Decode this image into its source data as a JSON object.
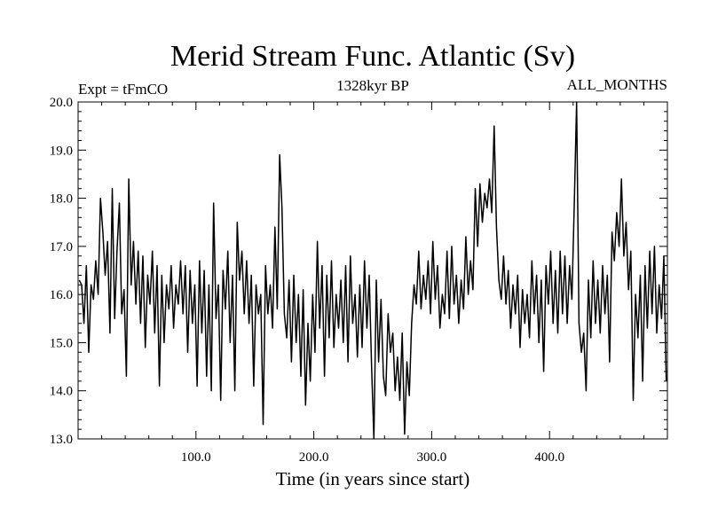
{
  "chart_data": {
    "type": "line",
    "title": "Merid Stream Func. Atlantic (Sv)",
    "subtitle_left": "Expt = tFmCO",
    "subtitle_center": "1328kyr BP",
    "subtitle_right": "ALL_MONTHS",
    "xlabel": "Time (in years since start)",
    "ylabel": "",
    "xlim": [
      0,
      500
    ],
    "ylim": [
      13.0,
      20.0
    ],
    "x_ticks": [
      100.0,
      200.0,
      300.0,
      400.0
    ],
    "x_tick_labels": [
      "100.0",
      "200.0",
      "300.0",
      "400.0"
    ],
    "y_ticks": [
      13.0,
      14.0,
      15.0,
      16.0,
      17.0,
      18.0,
      19.0,
      20.0
    ],
    "y_tick_labels": [
      "13.0",
      "14.0",
      "15.0",
      "16.0",
      "17.0",
      "18.0",
      "19.0",
      "20.0"
    ],
    "grid": false,
    "line_color": "#000000",
    "series": [
      {
        "points": [
          [
            1,
            16.3
          ],
          [
            3,
            16.2
          ],
          [
            5,
            15.4
          ],
          [
            7,
            16.6
          ],
          [
            9,
            14.8
          ],
          [
            11,
            16.2
          ],
          [
            13,
            15.9
          ],
          [
            15,
            16.7
          ],
          [
            17,
            16.0
          ],
          [
            19,
            18.0
          ],
          [
            21,
            17.3
          ],
          [
            23,
            16.4
          ],
          [
            25,
            17.1
          ],
          [
            27,
            15.2
          ],
          [
            29,
            18.2
          ],
          [
            31,
            15.5
          ],
          [
            33,
            16.9
          ],
          [
            35,
            17.9
          ],
          [
            37,
            15.6
          ],
          [
            39,
            16.1
          ],
          [
            41,
            14.3
          ],
          [
            43,
            18.4
          ],
          [
            45,
            16.2
          ],
          [
            47,
            17.1
          ],
          [
            49,
            15.8
          ],
          [
            51,
            16.9
          ],
          [
            53,
            15.4
          ],
          [
            55,
            16.8
          ],
          [
            57,
            14.9
          ],
          [
            59,
            16.4
          ],
          [
            61,
            15.8
          ],
          [
            63,
            16.9
          ],
          [
            65,
            15.2
          ],
          [
            67,
            16.6
          ],
          [
            69,
            14.1
          ],
          [
            71,
            16.4
          ],
          [
            73,
            15.0
          ],
          [
            75,
            16.2
          ],
          [
            77,
            15.7
          ],
          [
            79,
            16.6
          ],
          [
            81,
            15.3
          ],
          [
            83,
            16.2
          ],
          [
            85,
            15.8
          ],
          [
            87,
            16.7
          ],
          [
            89,
            15.6
          ],
          [
            91,
            16.6
          ],
          [
            93,
            14.8
          ],
          [
            95,
            16.5
          ],
          [
            97,
            15.4
          ],
          [
            99,
            16.2
          ],
          [
            101,
            14.1
          ],
          [
            103,
            16.7
          ],
          [
            105,
            15.2
          ],
          [
            107,
            16.5
          ],
          [
            109,
            14.3
          ],
          [
            111,
            16.2
          ],
          [
            113,
            14.0
          ],
          [
            115,
            17.9
          ],
          [
            117,
            15.5
          ],
          [
            119,
            16.2
          ],
          [
            121,
            13.8
          ],
          [
            123,
            16.5
          ],
          [
            125,
            15.7
          ],
          [
            127,
            16.9
          ],
          [
            129,
            15.0
          ],
          [
            131,
            16.4
          ],
          [
            133,
            14.0
          ],
          [
            135,
            17.5
          ],
          [
            137,
            16.3
          ],
          [
            139,
            16.9
          ],
          [
            141,
            15.6
          ],
          [
            143,
            16.7
          ],
          [
            145,
            15.4
          ],
          [
            147,
            16.4
          ],
          [
            149,
            14.1
          ],
          [
            151,
            16.2
          ],
          [
            153,
            15.6
          ],
          [
            155,
            16.0
          ],
          [
            157,
            13.3
          ],
          [
            159,
            16.6
          ],
          [
            161,
            15.6
          ],
          [
            163,
            16.2
          ],
          [
            165,
            15.3
          ],
          [
            167,
            17.4
          ],
          [
            169,
            15.7
          ],
          [
            171,
            18.9
          ],
          [
            173,
            17.8
          ],
          [
            175,
            15.6
          ],
          [
            177,
            15.1
          ],
          [
            179,
            16.3
          ],
          [
            181,
            14.6
          ],
          [
            183,
            16.4
          ],
          [
            185,
            15.0
          ],
          [
            187,
            16.0
          ],
          [
            189,
            14.3
          ],
          [
            191,
            16.1
          ],
          [
            193,
            13.7
          ],
          [
            195,
            15.4
          ],
          [
            197,
            14.2
          ],
          [
            199,
            16.0
          ],
          [
            201,
            14.8
          ],
          [
            203,
            17.1
          ],
          [
            205,
            15.3
          ],
          [
            207,
            16.6
          ],
          [
            209,
            14.3
          ],
          [
            211,
            16.4
          ],
          [
            213,
            15.1
          ],
          [
            215,
            16.7
          ],
          [
            217,
            14.9
          ],
          [
            219,
            16.0
          ],
          [
            221,
            15.3
          ],
          [
            223,
            16.3
          ],
          [
            225,
            15.0
          ],
          [
            227,
            16.6
          ],
          [
            229,
            14.6
          ],
          [
            231,
            16.8
          ],
          [
            233,
            15.4
          ],
          [
            235,
            16.0
          ],
          [
            237,
            14.7
          ],
          [
            239,
            16.2
          ],
          [
            241,
            14.9
          ],
          [
            243,
            16.7
          ],
          [
            245,
            15.3
          ],
          [
            247,
            16.4
          ],
          [
            249,
            14.5
          ],
          [
            251,
            13.0
          ],
          [
            253,
            16.3
          ],
          [
            255,
            14.6
          ],
          [
            257,
            15.9
          ],
          [
            259,
            14.3
          ],
          [
            261,
            13.9
          ],
          [
            263,
            15.6
          ],
          [
            265,
            14.8
          ],
          [
            267,
            15.2
          ],
          [
            269,
            14.0
          ],
          [
            271,
            14.7
          ],
          [
            273,
            13.8
          ],
          [
            275,
            15.2
          ],
          [
            277,
            13.1
          ],
          [
            279,
            14.6
          ],
          [
            281,
            13.9
          ],
          [
            283,
            15.4
          ],
          [
            285,
            16.2
          ],
          [
            287,
            15.8
          ],
          [
            289,
            16.9
          ],
          [
            291,
            15.7
          ],
          [
            293,
            16.4
          ],
          [
            295,
            15.9
          ],
          [
            297,
            16.7
          ],
          [
            299,
            15.6
          ],
          [
            301,
            17.1
          ],
          [
            303,
            15.9
          ],
          [
            305,
            16.6
          ],
          [
            307,
            15.3
          ],
          [
            309,
            16.0
          ],
          [
            311,
            15.6
          ],
          [
            313,
            16.9
          ],
          [
            315,
            15.5
          ],
          [
            317,
            17.0
          ],
          [
            319,
            15.8
          ],
          [
            321,
            16.4
          ],
          [
            323,
            15.4
          ],
          [
            325,
            16.3
          ],
          [
            327,
            15.7
          ],
          [
            329,
            17.2
          ],
          [
            331,
            16.0
          ],
          [
            333,
            16.7
          ],
          [
            335,
            16.1
          ],
          [
            337,
            18.2
          ],
          [
            339,
            17.0
          ],
          [
            341,
            18.3
          ],
          [
            343,
            17.5
          ],
          [
            345,
            18.1
          ],
          [
            347,
            17.8
          ],
          [
            349,
            18.4
          ],
          [
            351,
            17.7
          ],
          [
            353,
            19.5
          ],
          [
            355,
            17.4
          ],
          [
            357,
            16.3
          ],
          [
            359,
            15.9
          ],
          [
            361,
            16.8
          ],
          [
            363,
            15.8
          ],
          [
            365,
            16.5
          ],
          [
            367,
            15.3
          ],
          [
            369,
            16.2
          ],
          [
            371,
            15.6
          ],
          [
            373,
            16.4
          ],
          [
            375,
            14.9
          ],
          [
            377,
            16.1
          ],
          [
            379,
            15.4
          ],
          [
            381,
            16.0
          ],
          [
            383,
            15.1
          ],
          [
            385,
            16.7
          ],
          [
            387,
            15.6
          ],
          [
            389,
            16.4
          ],
          [
            391,
            15.0
          ],
          [
            393,
            16.3
          ],
          [
            395,
            14.4
          ],
          [
            397,
            16.6
          ],
          [
            399,
            15.8
          ],
          [
            401,
            16.9
          ],
          [
            403,
            15.4
          ],
          [
            405,
            16.5
          ],
          [
            407,
            15.2
          ],
          [
            409,
            16.9
          ],
          [
            411,
            15.6
          ],
          [
            413,
            16.8
          ],
          [
            415,
            15.4
          ],
          [
            417,
            16.6
          ],
          [
            419,
            15.9
          ],
          [
            421,
            17.9
          ],
          [
            423,
            20.0
          ],
          [
            425,
            15.4
          ],
          [
            427,
            14.8
          ],
          [
            429,
            15.2
          ],
          [
            431,
            14.0
          ],
          [
            433,
            16.3
          ],
          [
            435,
            15.1
          ],
          [
            437,
            16.7
          ],
          [
            439,
            15.4
          ],
          [
            441,
            16.3
          ],
          [
            443,
            15.2
          ],
          [
            445,
            16.6
          ],
          [
            447,
            15.6
          ],
          [
            449,
            16.4
          ],
          [
            451,
            14.6
          ],
          [
            453,
            17.3
          ],
          [
            455,
            16.7
          ],
          [
            457,
            17.7
          ],
          [
            459,
            17.0
          ],
          [
            461,
            18.4
          ],
          [
            463,
            16.8
          ],
          [
            465,
            17.5
          ],
          [
            467,
            16.1
          ],
          [
            469,
            16.9
          ],
          [
            471,
            13.8
          ],
          [
            473,
            16.0
          ],
          [
            475,
            15.1
          ],
          [
            477,
            16.4
          ],
          [
            479,
            14.2
          ],
          [
            481,
            16.6
          ],
          [
            483,
            15.3
          ],
          [
            485,
            16.9
          ],
          [
            487,
            15.6
          ],
          [
            489,
            17.0
          ],
          [
            491,
            15.2
          ],
          [
            493,
            16.2
          ],
          [
            495,
            15.5
          ],
          [
            497,
            16.8
          ],
          [
            499,
            14.2
          ],
          [
            501,
            16.0
          ],
          [
            503,
            16.7
          ],
          [
            505,
            16.3
          ]
        ]
      }
    ]
  }
}
